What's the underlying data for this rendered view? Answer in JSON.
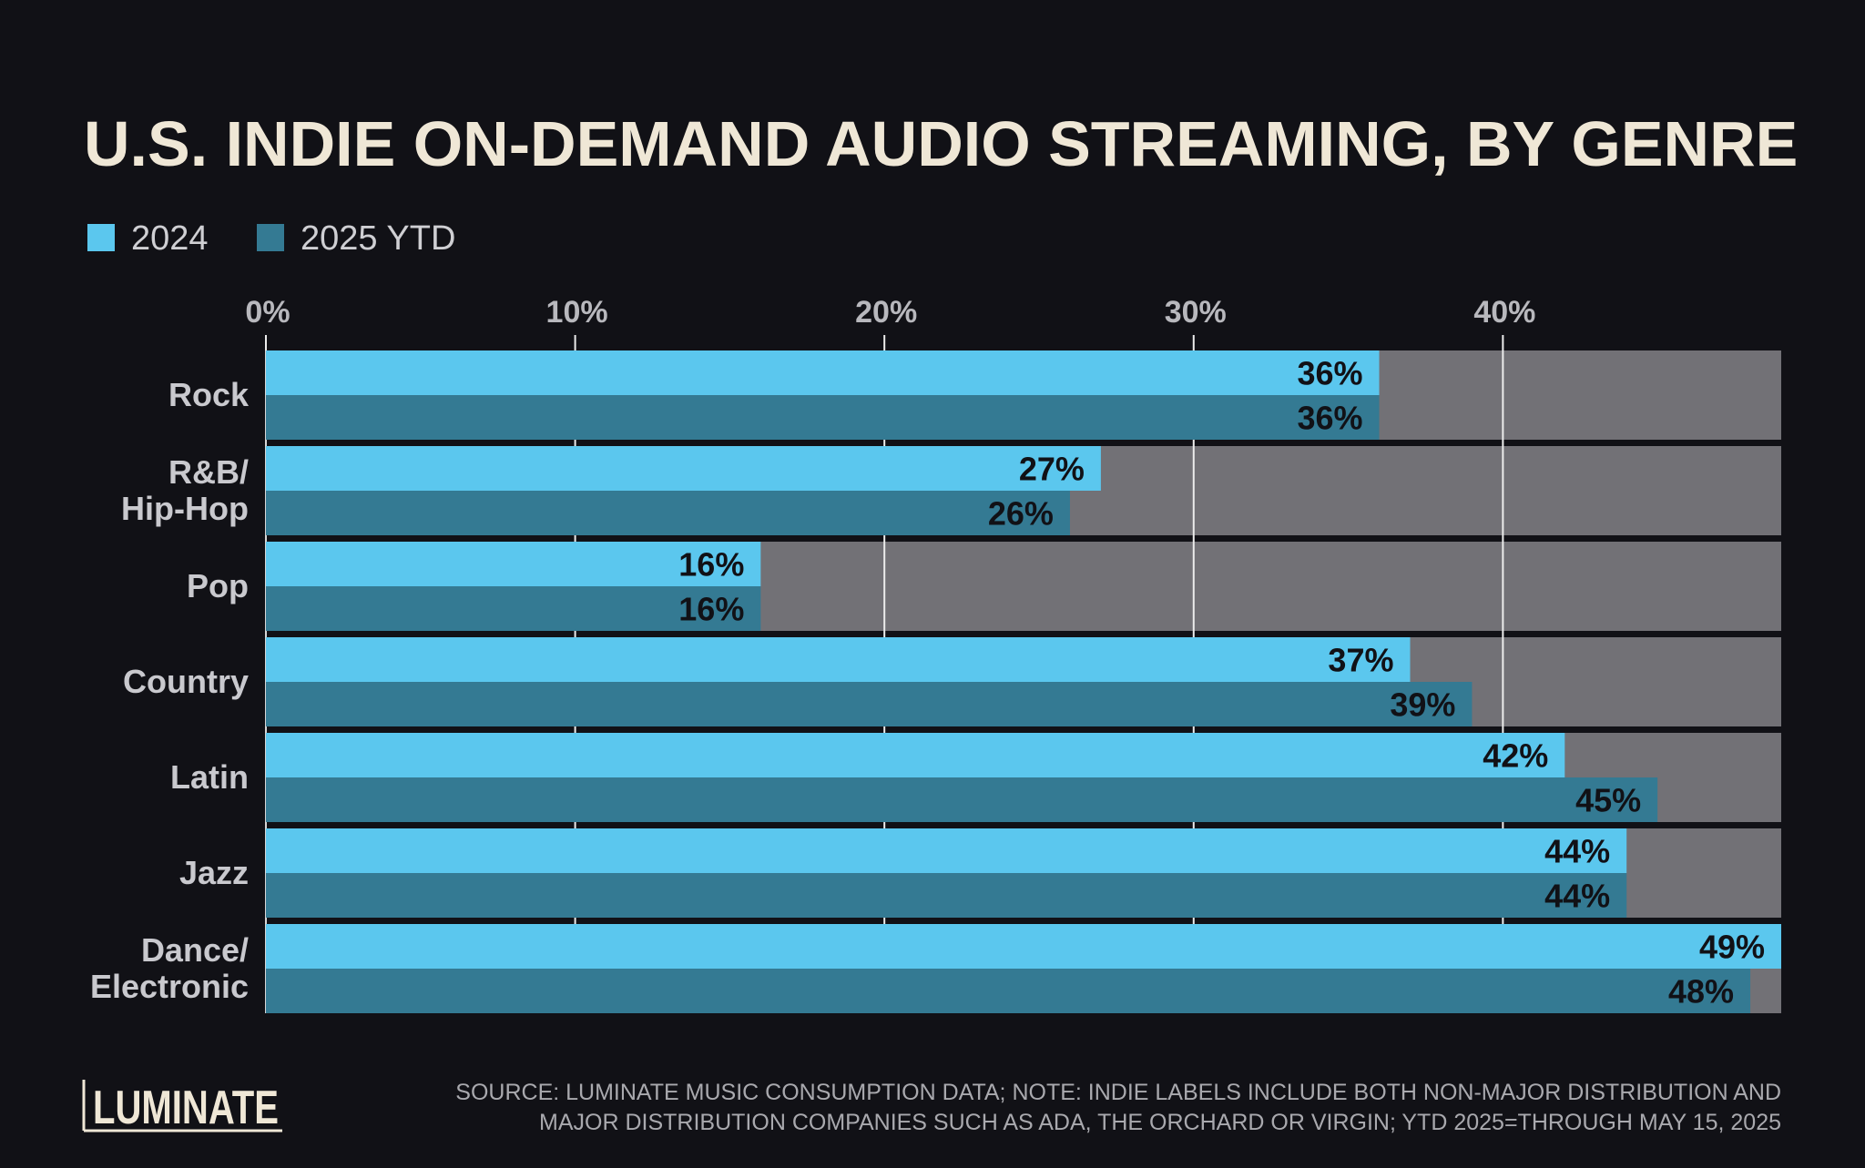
{
  "chart_data": {
    "type": "bar",
    "orientation": "horizontal",
    "title": "U.S. INDIE ON-DEMAND AUDIO STREAMING, BY GENRE",
    "categories": [
      "Rock",
      "R&B/ Hip-Hop",
      "Pop",
      "Country",
      "Latin",
      "Jazz",
      "Dance/ Electronic"
    ],
    "category_lines": [
      [
        "Rock"
      ],
      [
        "R&B/",
        "Hip-Hop"
      ],
      [
        "Pop"
      ],
      [
        "Country"
      ],
      [
        "Latin"
      ],
      [
        "Jazz"
      ],
      [
        "Dance/",
        "Electronic"
      ]
    ],
    "series": [
      {
        "name": "2024",
        "color": "#5bc7ee",
        "values": [
          36,
          27,
          16,
          37,
          42,
          44,
          49
        ],
        "labels": [
          "36%",
          "27%",
          "16%",
          "37%",
          "42%",
          "44%",
          "49%"
        ]
      },
      {
        "name": "2025 YTD",
        "color": "#347a93",
        "values": [
          36,
          26,
          16,
          39,
          45,
          44,
          48
        ],
        "labels": [
          "36%",
          "26%",
          "16%",
          "39%",
          "45%",
          "44%",
          "48%"
        ]
      }
    ],
    "xlim": [
      0,
      49
    ],
    "xticks": [
      0,
      10,
      20,
      30,
      40
    ],
    "xtick_labels": [
      "0%",
      "10%",
      "20%",
      "30%",
      "40%"
    ],
    "grid": true,
    "background_track_color": "#727176",
    "legend_position": "top-left",
    "xlabel": "",
    "ylabel": ""
  },
  "brand": {
    "logo_text": "LUMINATE",
    "text_color": "#efe7d6"
  },
  "footer": {
    "source_lines": [
      "SOURCE: LUMINATE MUSIC CONSUMPTION DATA; NOTE: INDIE LABELS INCLUDE BOTH NON-MAJOR DISTRIBUTION AND",
      "MAJOR DISTRIBUTION COMPANIES SUCH AS ADA, THE ORCHARD OR VIRGIN; YTD 2025=THROUGH MAY 15, 2025"
    ]
  }
}
